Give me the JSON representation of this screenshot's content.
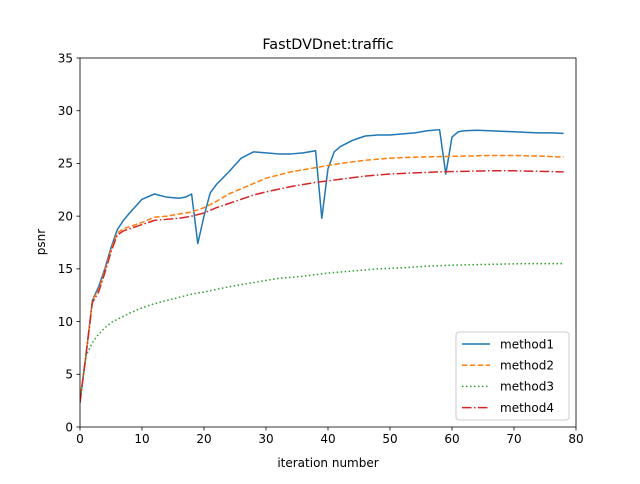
{
  "chart_data": {
    "type": "line",
    "title": "FastDVDnet:traffic",
    "xlabel": "iteration number",
    "ylabel": "psnr",
    "xlim": [
      0,
      80
    ],
    "ylim": [
      0,
      35
    ],
    "xticks": [
      0,
      10,
      20,
      30,
      40,
      50,
      60,
      70,
      80
    ],
    "yticks": [
      0,
      5,
      10,
      15,
      20,
      25,
      30,
      35
    ],
    "grid": false,
    "legend_position": "lower right",
    "series": [
      {
        "name": "method1",
        "color": "#1f77b4",
        "style": "solid",
        "x": [
          0,
          1,
          2,
          3,
          4,
          5,
          6,
          7,
          8,
          10,
          12,
          14,
          16,
          17,
          18,
          19,
          20,
          21,
          22,
          24,
          26,
          28,
          30,
          32,
          34,
          36,
          38,
          39,
          40,
          41,
          42,
          44,
          46,
          48,
          50,
          52,
          54,
          56,
          58,
          59,
          60,
          61,
          62,
          64,
          66,
          68,
          70,
          72,
          74,
          76,
          78
        ],
        "y": [
          2.5,
          7,
          12,
          13.3,
          15,
          17,
          18.7,
          19.6,
          20.3,
          21.6,
          22.1,
          21.8,
          21.7,
          21.8,
          22.1,
          17.4,
          20,
          22.2,
          23,
          24.2,
          25.5,
          26.1,
          26.0,
          25.9,
          25.9,
          26.0,
          26.2,
          19.8,
          24.5,
          26.1,
          26.6,
          27.2,
          27.6,
          27.7,
          27.7,
          27.8,
          27.9,
          28.1,
          28.2,
          24.0,
          27.5,
          28.0,
          28.1,
          28.15,
          28.1,
          28.05,
          28.0,
          27.95,
          27.9,
          27.9,
          27.85
        ]
      },
      {
        "name": "method2",
        "color": "#ff7f0e",
        "style": "dashed",
        "x": [
          0,
          1,
          2,
          3,
          4,
          5,
          6,
          7,
          8,
          10,
          12,
          14,
          16,
          18,
          20,
          22,
          24,
          26,
          28,
          30,
          34,
          38,
          42,
          46,
          50,
          54,
          58,
          62,
          66,
          70,
          74,
          78
        ],
        "y": [
          2.5,
          7,
          12,
          13.0,
          14.8,
          16.8,
          18.4,
          18.8,
          19.0,
          19.4,
          19.9,
          20.0,
          20.2,
          20.4,
          20.8,
          21.4,
          22.1,
          22.6,
          23.1,
          23.6,
          24.2,
          24.6,
          25.0,
          25.3,
          25.5,
          25.6,
          25.65,
          25.7,
          25.75,
          25.75,
          25.7,
          25.6
        ]
      },
      {
        "name": "method3",
        "color": "#2ca02c",
        "style": "dotted",
        "x": [
          0,
          1,
          2,
          3,
          4,
          5,
          6,
          8,
          10,
          12,
          14,
          16,
          18,
          20,
          24,
          28,
          32,
          36,
          40,
          44,
          48,
          52,
          56,
          60,
          64,
          68,
          72,
          76,
          78
        ],
        "y": [
          2.5,
          6.8,
          8.0,
          8.8,
          9.4,
          9.9,
          10.2,
          10.8,
          11.3,
          11.7,
          12.0,
          12.3,
          12.6,
          12.8,
          13.3,
          13.7,
          14.1,
          14.3,
          14.6,
          14.8,
          15.0,
          15.1,
          15.25,
          15.35,
          15.4,
          15.45,
          15.5,
          15.5,
          15.5
        ]
      },
      {
        "name": "method4",
        "color": "#d62728",
        "style": "dashdot",
        "x": [
          0,
          1,
          2,
          3,
          4,
          5,
          6,
          7,
          8,
          10,
          12,
          14,
          16,
          18,
          20,
          22,
          24,
          26,
          28,
          30,
          34,
          38,
          42,
          46,
          50,
          54,
          58,
          62,
          66,
          70,
          74,
          78
        ],
        "y": [
          2.3,
          7,
          11.8,
          12.8,
          14.6,
          16.6,
          18.2,
          18.6,
          18.8,
          19.2,
          19.6,
          19.7,
          19.8,
          20.0,
          20.3,
          20.8,
          21.2,
          21.6,
          22.0,
          22.3,
          22.8,
          23.2,
          23.5,
          23.8,
          24.0,
          24.1,
          24.2,
          24.25,
          24.3,
          24.3,
          24.25,
          24.2
        ]
      }
    ]
  }
}
